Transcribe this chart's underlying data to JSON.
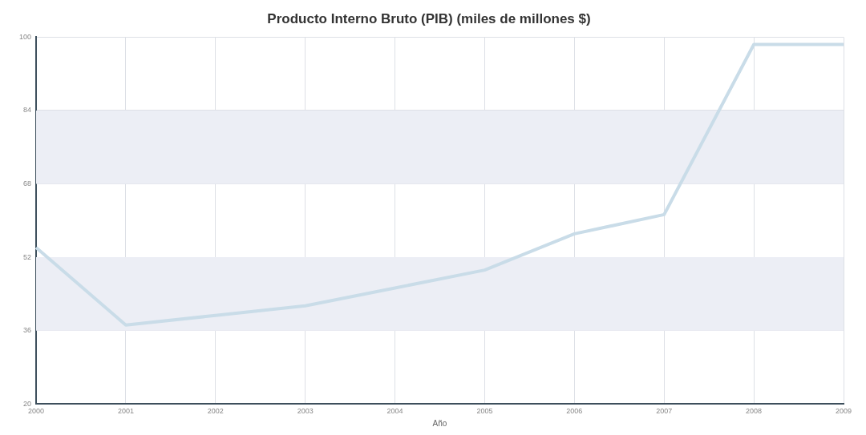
{
  "chart_data": {
    "type": "line",
    "title": "Producto Interno Bruto (PIB) (miles de millones $)",
    "xlabel": "Año",
    "categories": [
      "2000",
      "2001",
      "2002",
      "2003",
      "2004",
      "2005",
      "2006",
      "2007",
      "2008",
      "2009"
    ],
    "series": [
      {
        "color": "#c9dce8",
        "values": [
          54.1,
          37.2,
          39.3,
          41.4,
          45.3,
          49.2,
          57.1,
          61.3,
          98.4,
          98.4
        ]
      }
    ],
    "ylim": [
      20,
      100
    ],
    "yticks": [
      20,
      36,
      52,
      68,
      84,
      100
    ],
    "grid": true,
    "legend": false,
    "marker": "none",
    "line_style": "solid",
    "bands": [
      {
        "axis": "y",
        "from": 36,
        "to": 52,
        "color": "#eceef5"
      },
      {
        "axis": "y",
        "from": 68,
        "to": 84,
        "color": "#eceef5"
      }
    ]
  }
}
